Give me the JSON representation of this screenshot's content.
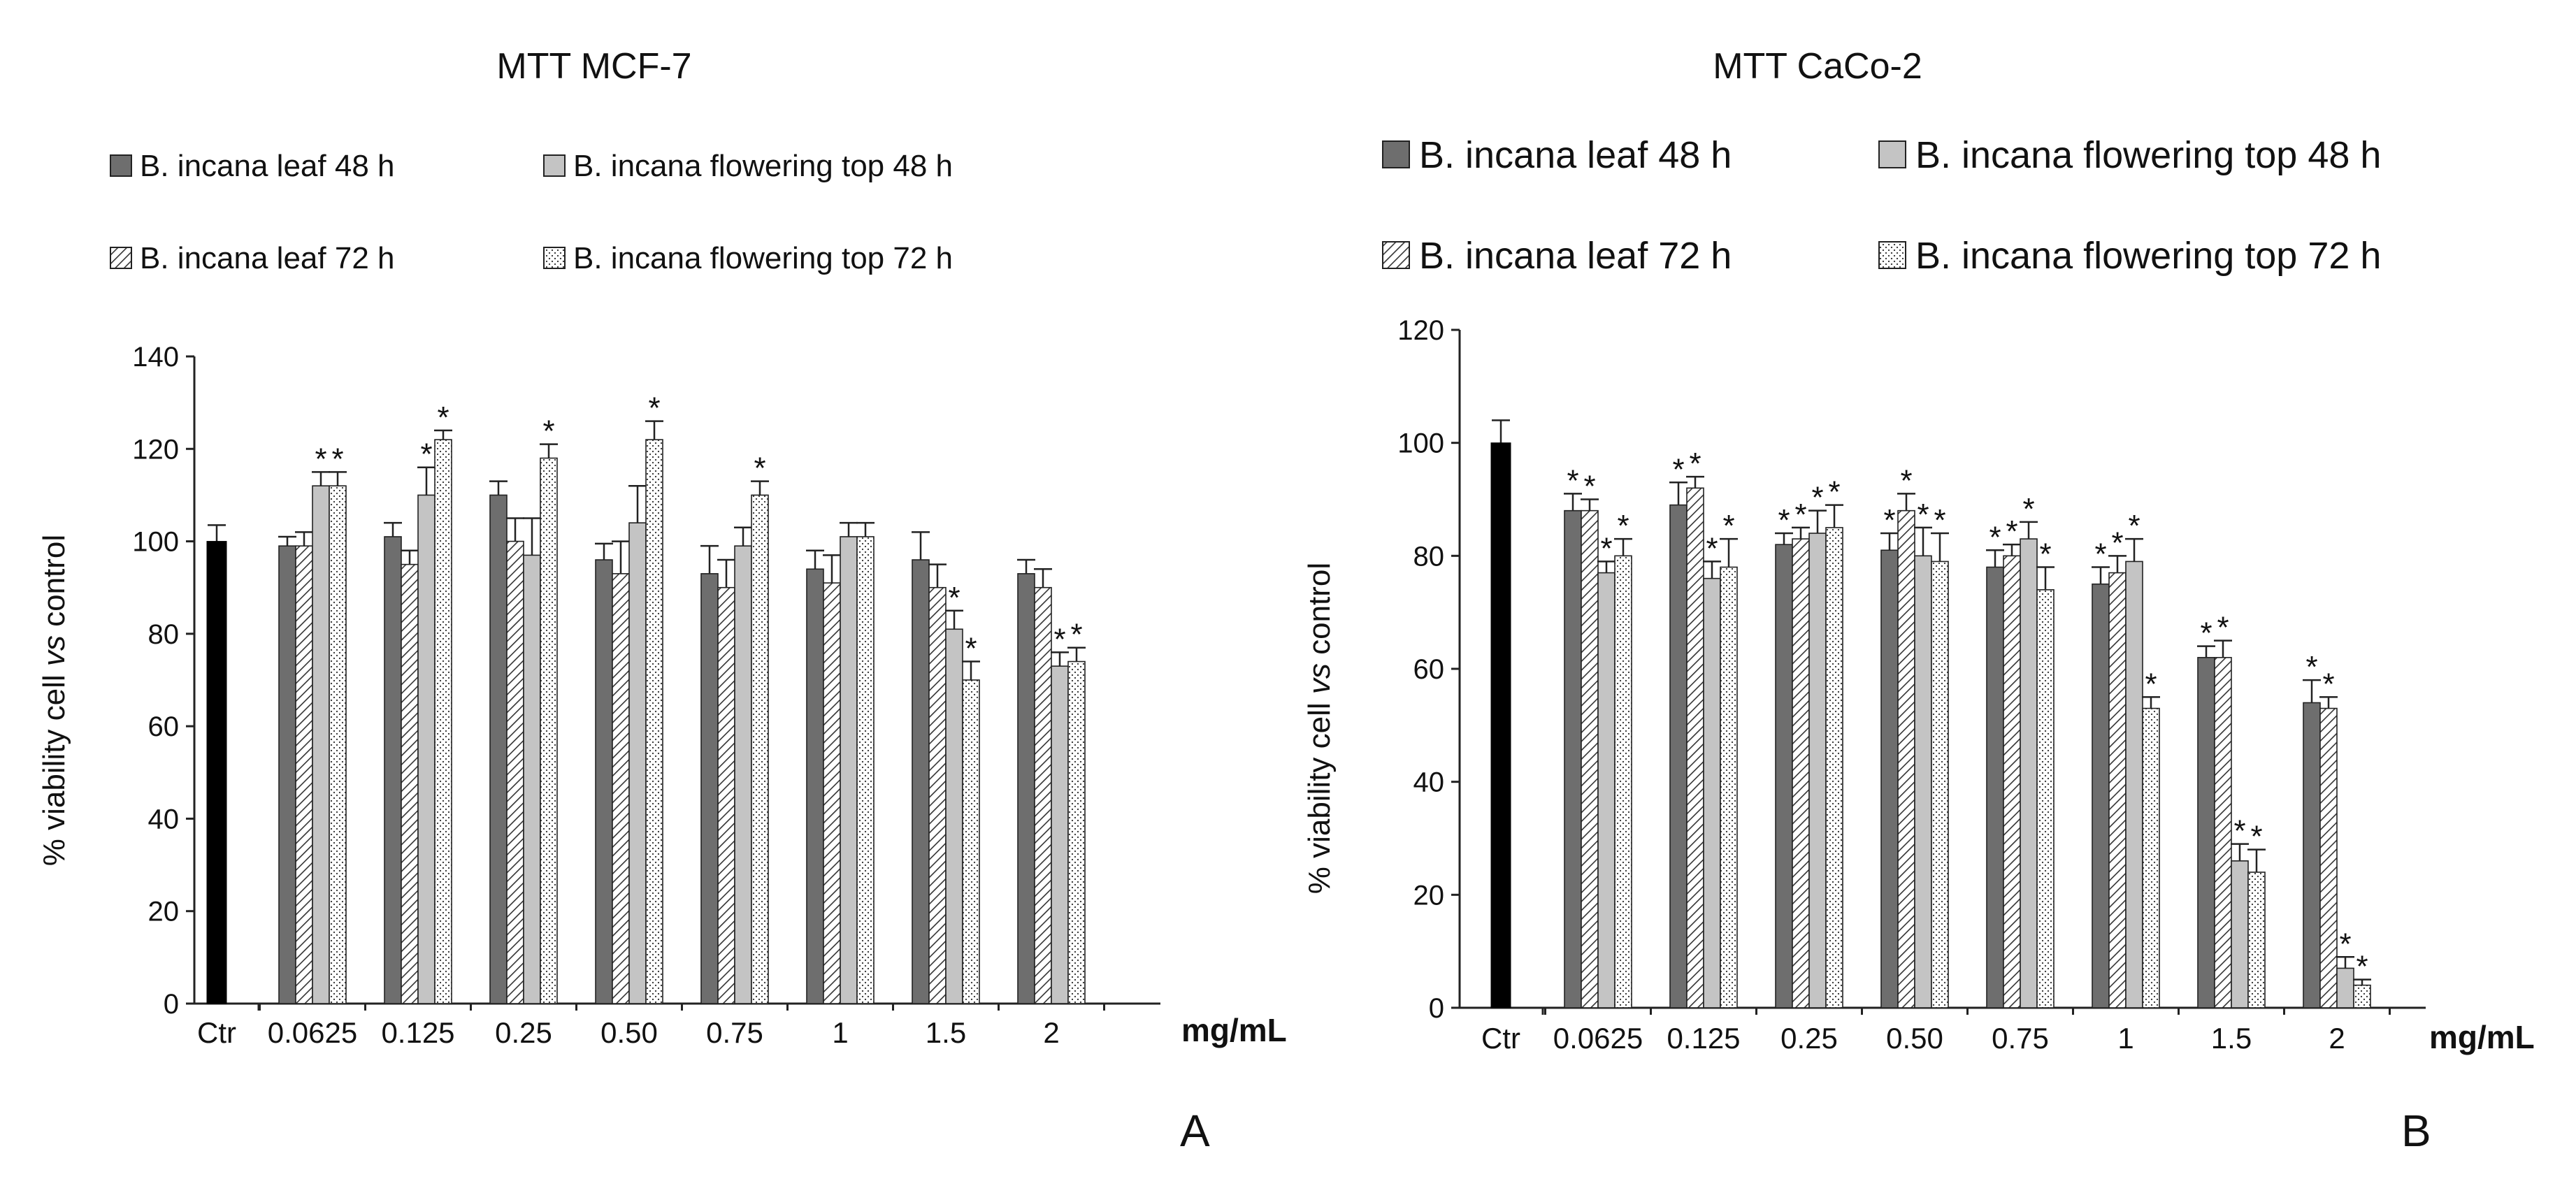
{
  "figure": {
    "panel_labels": [
      "A",
      "B"
    ],
    "unit_label": "mg/mL"
  },
  "colors": {
    "ctr": "#000000",
    "leaf48": "#6e6e6e",
    "flowering48": "#c4c4c4",
    "hatch_line": "#333333",
    "dot": "#333333",
    "axis": "#222222"
  },
  "chart_data": [
    {
      "type": "bar",
      "title": "MTT  MCF-7",
      "panel": "A",
      "ylabel": "% viability cell vs control",
      "ylabel_parts": [
        "% viability cell ",
        "vs",
        " control"
      ],
      "xlabel": "mg/mL",
      "ylim": [
        0,
        140
      ],
      "yticks": [
        0,
        20,
        40,
        60,
        80,
        100,
        120,
        140
      ],
      "control": {
        "category": "Ctr",
        "value": 100,
        "error": 3.5
      },
      "categories": [
        "0.0625",
        "0.125",
        "0.25",
        "0.50",
        "0.75",
        "1",
        "1.5",
        "2"
      ],
      "series": [
        {
          "name": "B. incana leaf 48 h",
          "pattern": "dark",
          "values": [
            99,
            101,
            110,
            96,
            93,
            94,
            96,
            93
          ],
          "errors": [
            2,
            3,
            3,
            3.5,
            6,
            4,
            6,
            3
          ],
          "sig": [
            false,
            false,
            false,
            false,
            false,
            false,
            false,
            false
          ]
        },
        {
          "name": "B. incana leaf 72 h",
          "pattern": "hatch",
          "values": [
            99,
            95,
            100,
            93,
            90,
            91,
            90,
            90
          ],
          "errors": [
            3,
            3,
            5,
            7,
            6,
            6,
            5,
            4
          ],
          "sig": [
            false,
            false,
            false,
            false,
            false,
            false,
            false,
            false
          ]
        },
        {
          "name": "B. incana flowering top 48 h",
          "pattern": "light",
          "values": [
            112,
            110,
            97,
            104,
            99,
            101,
            81,
            73
          ],
          "errors": [
            3,
            6,
            8,
            8,
            4,
            3,
            4,
            3
          ],
          "sig": [
            true,
            true,
            false,
            false,
            false,
            false,
            true,
            true
          ]
        },
        {
          "name": "B. incana flowering top 72 h",
          "pattern": "dots",
          "values": [
            112,
            122,
            118,
            122,
            110,
            101,
            70,
            74
          ],
          "errors": [
            3,
            2,
            3,
            4,
            3,
            3,
            4,
            3
          ],
          "sig": [
            true,
            true,
            true,
            true,
            true,
            false,
            true,
            true
          ]
        }
      ],
      "legend": [
        "B. incana leaf 48 h",
        "B. incana flowering top 48 h",
        "B. incana leaf 72 h",
        "B. incana flowering top 72 h"
      ],
      "legend_placement": "top",
      "sig_marker": "*"
    },
    {
      "type": "bar",
      "title": "MTT CaCo-2",
      "panel": "B",
      "ylabel": "% viability cell vs control",
      "ylabel_parts": [
        "% viability cell ",
        "vs",
        " control"
      ],
      "xlabel": "mg/mL",
      "ylim": [
        0,
        120
      ],
      "yticks": [
        0,
        20,
        40,
        60,
        80,
        100,
        120
      ],
      "control": {
        "category": "Ctr",
        "value": 100,
        "error": 4
      },
      "categories": [
        "0.0625",
        "0.125",
        "0.25",
        "0.50",
        "0.75",
        "1",
        "1.5",
        "2"
      ],
      "series": [
        {
          "name": "B. incana leaf 48 h",
          "pattern": "dark",
          "values": [
            88,
            89,
            82,
            81,
            78,
            75,
            62,
            54
          ],
          "errors": [
            3,
            4,
            2,
            3,
            3,
            3,
            2,
            4
          ],
          "sig": [
            true,
            true,
            true,
            true,
            true,
            true,
            true,
            true
          ]
        },
        {
          "name": "B. incana leaf 72 h",
          "pattern": "hatch",
          "values": [
            88,
            92,
            83,
            88,
            80,
            77,
            62,
            53
          ],
          "errors": [
            2,
            2,
            2,
            3,
            2,
            3,
            3,
            2
          ],
          "sig": [
            true,
            true,
            true,
            true,
            true,
            true,
            true,
            true
          ]
        },
        {
          "name": "B. incana flowering top 48 h",
          "pattern": "light",
          "values": [
            77,
            76,
            84,
            80,
            83,
            79,
            26,
            7
          ],
          "errors": [
            2,
            3,
            4,
            5,
            3,
            4,
            3,
            2
          ],
          "sig": [
            true,
            true,
            true,
            true,
            true,
            true,
            true,
            true
          ]
        },
        {
          "name": "B. incana flowering top 72 h",
          "pattern": "dots",
          "values": [
            80,
            78,
            85,
            79,
            74,
            53,
            24,
            4
          ],
          "errors": [
            3,
            5,
            4,
            5,
            4,
            2,
            4,
            1
          ],
          "sig": [
            true,
            true,
            true,
            true,
            true,
            true,
            true,
            true
          ]
        }
      ],
      "legend": [
        "B. incana leaf 48 h",
        "B. incana flowering top 48 h",
        "B. incana leaf 72 h",
        "B. incana flowering top 72 h"
      ],
      "legend_placement": "top",
      "sig_marker": "*"
    }
  ]
}
